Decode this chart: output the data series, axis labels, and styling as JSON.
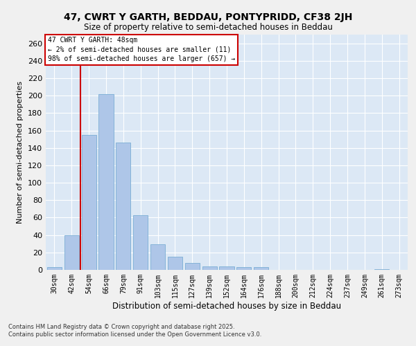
{
  "title1": "47, CWRT Y GARTH, BEDDAU, PONTYPRIDD, CF38 2JH",
  "title2": "Size of property relative to semi-detached houses in Beddau",
  "xlabel": "Distribution of semi-detached houses by size in Beddau",
  "ylabel": "Number of semi-detached properties",
  "categories": [
    "30sqm",
    "42sqm",
    "54sqm",
    "66sqm",
    "79sqm",
    "91sqm",
    "103sqm",
    "115sqm",
    "127sqm",
    "139sqm",
    "152sqm",
    "164sqm",
    "176sqm",
    "188sqm",
    "200sqm",
    "212sqm",
    "224sqm",
    "237sqm",
    "249sqm",
    "261sqm",
    "273sqm"
  ],
  "values": [
    3,
    40,
    155,
    202,
    146,
    63,
    29,
    15,
    8,
    4,
    4,
    3,
    3,
    0,
    0,
    0,
    0,
    0,
    0,
    1,
    0
  ],
  "bar_color": "#aec6e8",
  "bar_edgecolor": "#7aaed4",
  "highlight_color": "#cc0000",
  "ylim": [
    0,
    270
  ],
  "yticks": [
    0,
    20,
    40,
    60,
    80,
    100,
    120,
    140,
    160,
    180,
    200,
    220,
    240,
    260
  ],
  "annotation_title": "47 CWRT Y GARTH: 48sqm",
  "annotation_line1": "← 2% of semi-detached houses are smaller (11)",
  "annotation_line2": "98% of semi-detached houses are larger (657) →",
  "vline_x_index": 1,
  "bg_color": "#dce8f5",
  "fig_bg_color": "#f0f0f0",
  "footer1": "Contains HM Land Registry data © Crown copyright and database right 2025.",
  "footer2": "Contains public sector information licensed under the Open Government Licence v3.0."
}
